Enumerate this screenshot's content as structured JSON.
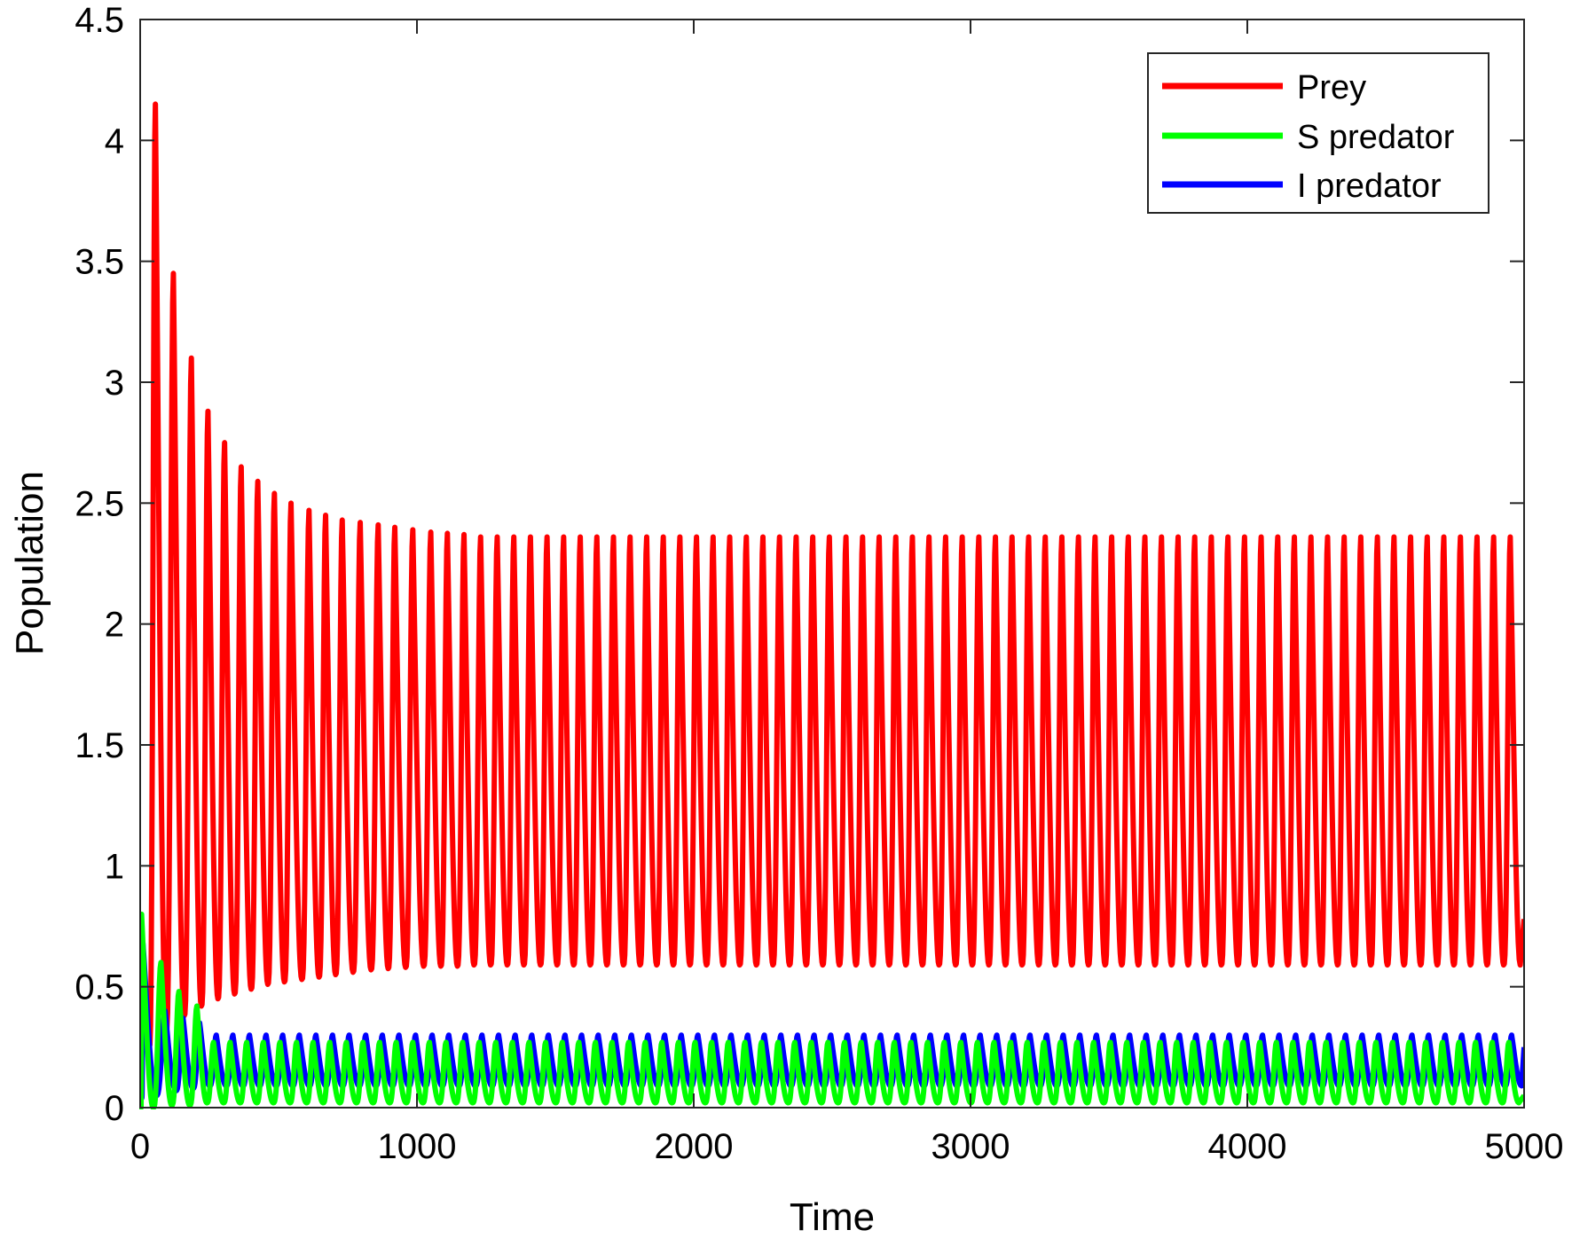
{
  "chart_data": {
    "type": "line",
    "title": "",
    "xlabel": "Time",
    "ylabel": "Population",
    "xlim": [
      0,
      5000
    ],
    "ylim": [
      0,
      4.5
    ],
    "xticks": [
      "0",
      "1000",
      "2000",
      "3000",
      "4000",
      "5000"
    ],
    "yticks": [
      "0",
      "0.5",
      "1",
      "1.5",
      "2",
      "2.5",
      "3",
      "3.5",
      "4",
      "4.5"
    ],
    "grid": false,
    "legend_position": "top-right",
    "series": [
      {
        "name": "Prey",
        "color": "#ff0000",
        "start": 0.5,
        "period": 60,
        "peak_times": [
          55,
          120,
          185,
          245,
          305,
          365,
          425,
          485,
          545,
          610,
          670,
          730,
          795,
          860,
          920,
          985,
          1050,
          1110,
          1170
        ],
        "peaks": [
          4.15,
          3.45,
          3.1,
          2.88,
          2.75,
          2.65,
          2.59,
          2.54,
          2.5,
          2.47,
          2.45,
          2.43,
          2.42,
          2.41,
          2.4,
          2.39,
          2.38,
          2.375,
          2.37
        ],
        "troughs": [
          0.25,
          0.32,
          0.38,
          0.42,
          0.45,
          0.47,
          0.49,
          0.51,
          0.52,
          0.53,
          0.54,
          0.55,
          0.56,
          0.57,
          0.575,
          0.58,
          0.585,
          0.585,
          0.585
        ],
        "steady_max": 2.36,
        "steady_min": 0.59,
        "end_value": 0.78
      },
      {
        "name": "S predator",
        "color": "#00ff00",
        "start": 0.8,
        "period": 60,
        "peak_times": [
          5,
          75,
          140,
          205
        ],
        "peaks": [
          0.8,
          0.6,
          0.48,
          0.42
        ],
        "troughs": [
          0.0,
          0.0,
          0.01,
          0.01
        ],
        "steady_max": 0.27,
        "steady_min": 0.02,
        "end_value": 0.05
      },
      {
        "name": "I predator",
        "color": "#0000ff",
        "start": 0.5,
        "period": 60,
        "peak_times": [
          10,
          90,
          155,
          215
        ],
        "peaks": [
          0.68,
          0.4,
          0.37,
          0.35
        ],
        "troughs": [
          0.04,
          0.05,
          0.07,
          0.08
        ],
        "steady_max": 0.3,
        "steady_min": 0.09,
        "end_value": 0.25
      }
    ]
  }
}
